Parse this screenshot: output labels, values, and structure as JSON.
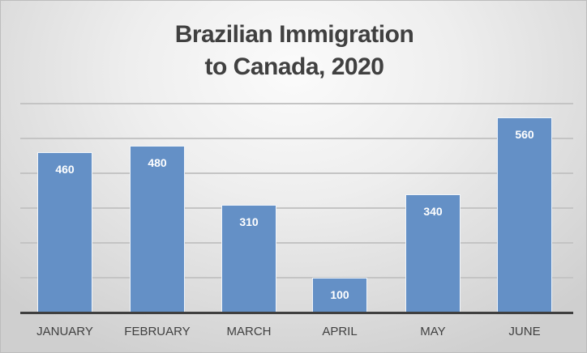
{
  "chart_data": {
    "type": "bar",
    "title": "Brazilian Immigration to Canada, 2020",
    "title_lines": [
      "Brazilian Immigration",
      "to Canada, 2020"
    ],
    "categories": [
      "JANUARY",
      "FEBRUARY",
      "MARCH",
      "APRIL",
      "MAY",
      "JUNE"
    ],
    "values": [
      460,
      480,
      310,
      100,
      340,
      560
    ],
    "value_labels": [
      "460",
      "480",
      "310",
      "100",
      "340",
      "560"
    ],
    "xlabel": "",
    "ylabel": "",
    "ylim": [
      0,
      600
    ],
    "grid": true,
    "grid_step": 100,
    "legend": null,
    "bar_color": "#6490c6"
  }
}
